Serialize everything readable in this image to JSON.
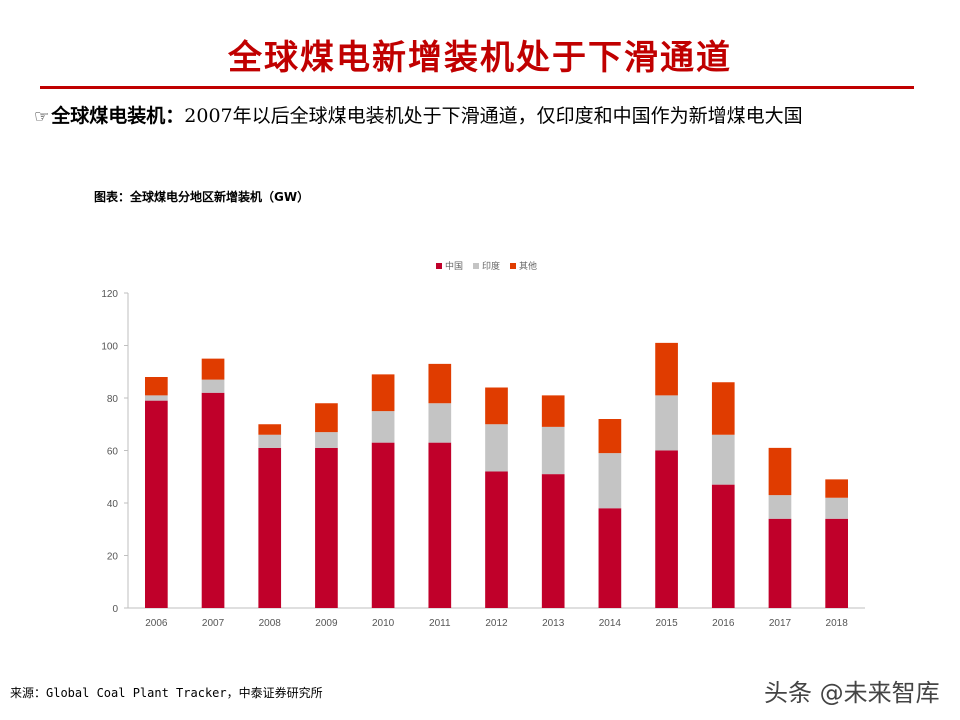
{
  "page": {
    "title": "全球煤电新增装机处于下滑通道",
    "bullet_icon": "pointing-hand-icon",
    "bullet_glyph": "☞",
    "bullet_lead": "全球煤电装机：",
    "bullet_text": "2007年以后全球煤电装机处于下滑通道，仅印度和中国作为新增煤电大国",
    "chart_caption": "图表：全球煤电分地区新增装机（GW）",
    "source": "来源：Global Coal Plant Tracker，中泰证券研究所",
    "watermark": "头条 @未来智库"
  },
  "chart_data": {
    "type": "bar",
    "stacked": true,
    "title": "图表：全球煤电分地区新增装机（GW）",
    "xlabel": "",
    "ylabel": "",
    "ylim": [
      0,
      120
    ],
    "yticks": [
      0,
      20,
      40,
      60,
      80,
      100,
      120
    ],
    "grid": false,
    "legend_position": "top-center",
    "categories": [
      "2006",
      "2007",
      "2008",
      "2009",
      "2010",
      "2011",
      "2012",
      "2013",
      "2014",
      "2015",
      "2016",
      "2017",
      "2018"
    ],
    "series": [
      {
        "name": "中国",
        "color": "#c0002a",
        "values": [
          79,
          82,
          61,
          61,
          63,
          63,
          52,
          51,
          38,
          60,
          47,
          34,
          34
        ]
      },
      {
        "name": "印度",
        "color": "#c4c4c4",
        "values": [
          2,
          5,
          5,
          6,
          12,
          15,
          18,
          18,
          21,
          21,
          19,
          9,
          8
        ]
      },
      {
        "name": "其他",
        "color": "#e03c00",
        "values": [
          7,
          8,
          4,
          11,
          14,
          15,
          14,
          12,
          13,
          20,
          20,
          18,
          7
        ]
      }
    ]
  }
}
